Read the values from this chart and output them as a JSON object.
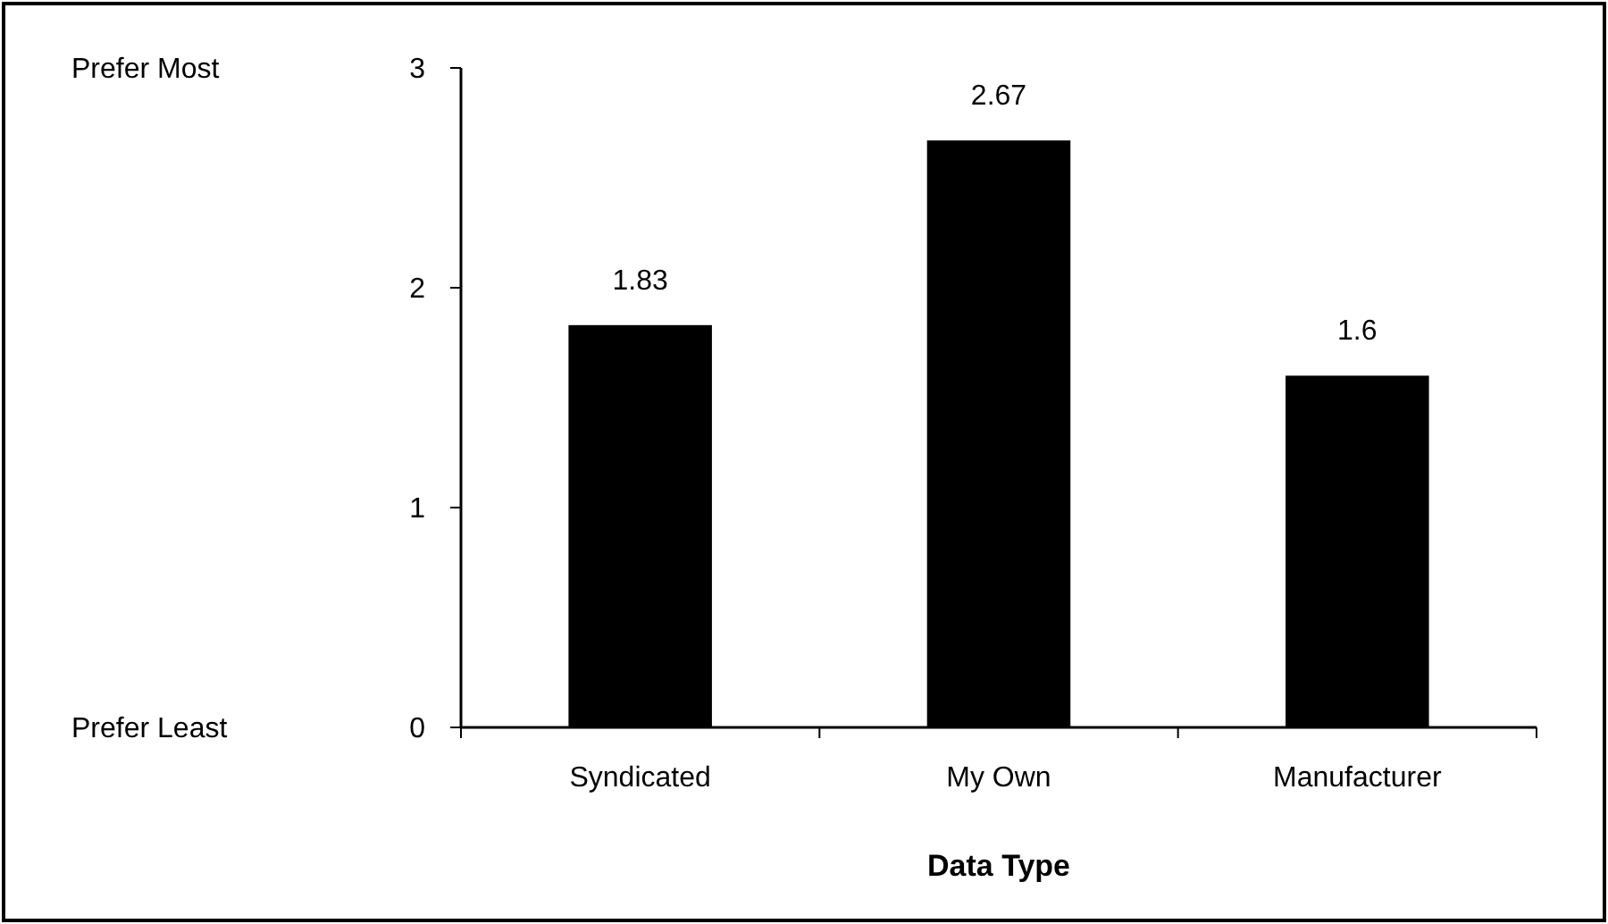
{
  "chart_data": {
    "type": "bar",
    "xlabel": "Data Type",
    "categories": [
      "Syndicated",
      "My Own",
      "Manufacturer"
    ],
    "values": [
      1.83,
      2.67,
      1.6
    ],
    "color": "#000000",
    "ylim": [
      0,
      3
    ],
    "yticks": [
      0,
      1,
      2,
      3
    ],
    "data_labels": true,
    "grid": false,
    "annotations": [
      "Prefer Most",
      "Prefer Least"
    ]
  }
}
